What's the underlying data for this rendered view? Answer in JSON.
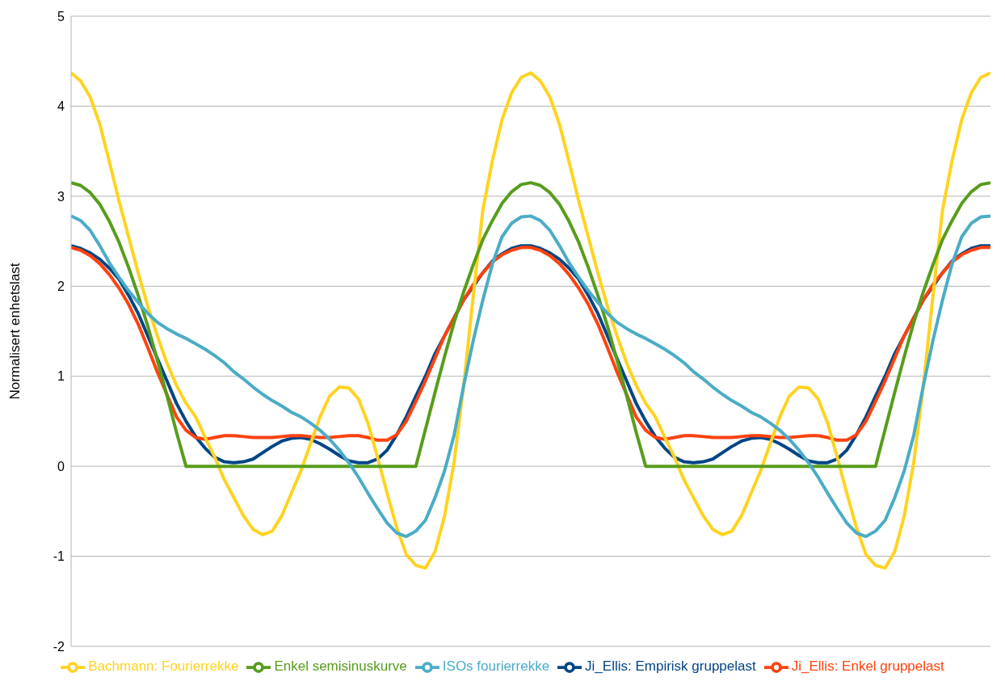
{
  "chart_data": {
    "type": "line",
    "ylabel": "Normalisert enhetslast",
    "ylim": [
      -2,
      5
    ],
    "yticks": [
      -2,
      -1,
      0,
      1,
      2,
      3,
      4,
      5
    ],
    "grid": "y",
    "legend": "bottom",
    "tick_labels": "y",
    "marker": "none",
    "line_style": "solid",
    "categories": [
      null,
      null,
      null,
      null,
      null,
      null,
      null,
      null,
      null,
      null,
      null,
      null,
      null,
      null,
      null,
      null,
      null,
      null,
      null,
      null,
      null,
      null,
      null,
      null,
      null,
      null,
      null,
      null,
      null,
      null,
      null,
      null,
      null,
      null,
      null,
      null,
      null,
      null,
      null,
      null,
      null,
      null,
      null,
      null,
      null,
      null,
      null,
      null,
      null,
      null,
      null,
      null,
      null,
      null,
      null,
      null,
      null,
      null,
      null,
      null,
      null,
      null,
      null,
      null,
      null,
      null,
      null,
      null,
      null,
      null,
      null,
      null,
      null,
      null,
      null,
      null,
      null,
      null,
      null,
      null,
      null,
      null,
      null,
      null,
      null,
      null,
      null,
      null,
      null,
      null,
      null,
      null,
      null,
      null,
      null,
      null,
      null
    ],
    "series": [
      {
        "name": "Ji_Ellis: Empirisk gruppelast",
        "color": "#004586",
        "values": [
          2.45,
          2.42,
          2.37,
          2.3,
          2.2,
          2.08,
          1.9,
          1.7,
          1.45,
          1.2,
          0.95,
          0.7,
          0.5,
          0.33,
          0.2,
          0.1,
          0.05,
          0.04,
          0.05,
          0.08,
          0.15,
          0.22,
          0.28,
          0.31,
          0.32,
          0.3,
          0.25,
          0.19,
          0.12,
          0.06,
          0.04,
          0.04,
          0.08,
          0.18,
          0.35,
          0.55,
          0.78,
          1.0,
          1.25,
          1.45,
          1.65,
          1.85,
          2.0,
          2.15,
          2.28,
          2.36,
          2.42,
          2.45,
          2.45,
          2.42,
          2.37,
          2.3,
          2.2,
          2.08,
          1.9,
          1.7,
          1.45,
          1.2,
          0.95,
          0.7,
          0.5,
          0.33,
          0.2,
          0.1,
          0.05,
          0.04,
          0.05,
          0.08,
          0.15,
          0.22,
          0.28,
          0.31,
          0.32,
          0.3,
          0.25,
          0.19,
          0.12,
          0.06,
          0.04,
          0.04,
          0.08,
          0.18,
          0.35,
          0.55,
          0.78,
          1.0,
          1.25,
          1.45,
          1.65,
          1.85,
          2.0,
          2.15,
          2.28,
          2.36,
          2.42,
          2.45,
          2.45
        ]
      },
      {
        "name": "Ji_Ellis: Enkel gruppelast",
        "color": "#ff420e",
        "values": [
          2.43,
          2.4,
          2.34,
          2.25,
          2.13,
          1.98,
          1.8,
          1.58,
          1.32,
          1.05,
          0.8,
          0.55,
          0.4,
          0.32,
          0.3,
          0.32,
          0.34,
          0.34,
          0.33,
          0.32,
          0.32,
          0.32,
          0.33,
          0.34,
          0.34,
          0.33,
          0.32,
          0.32,
          0.33,
          0.34,
          0.34,
          0.32,
          0.29,
          0.29,
          0.35,
          0.5,
          0.72,
          0.95,
          1.2,
          1.45,
          1.65,
          1.85,
          2.02,
          2.15,
          2.27,
          2.35,
          2.4,
          2.43,
          2.43,
          2.4,
          2.34,
          2.25,
          2.13,
          1.98,
          1.8,
          1.58,
          1.32,
          1.05,
          0.8,
          0.55,
          0.4,
          0.32,
          0.3,
          0.32,
          0.34,
          0.34,
          0.33,
          0.32,
          0.32,
          0.32,
          0.33,
          0.34,
          0.34,
          0.33,
          0.32,
          0.32,
          0.33,
          0.34,
          0.34,
          0.32,
          0.29,
          0.29,
          0.35,
          0.5,
          0.72,
          0.95,
          1.2,
          1.45,
          1.65,
          1.85,
          2.02,
          2.15,
          2.27,
          2.35,
          2.4,
          2.43,
          2.43
        ]
      },
      {
        "name": "Bachmann: Fourierrekke",
        "color": "#ffd320",
        "values": [
          4.37,
          4.28,
          4.1,
          3.8,
          3.38,
          2.95,
          2.55,
          2.15,
          1.78,
          1.45,
          1.15,
          0.9,
          0.7,
          0.55,
          0.32,
          0.1,
          -0.15,
          -0.35,
          -0.55,
          -0.7,
          -0.76,
          -0.72,
          -0.55,
          -0.3,
          -0.05,
          0.25,
          0.55,
          0.78,
          0.88,
          0.87,
          0.75,
          0.48,
          0.1,
          -0.3,
          -0.68,
          -0.98,
          -1.1,
          -1.13,
          -0.95,
          -0.55,
          0.05,
          0.9,
          1.9,
          2.85,
          3.4,
          3.85,
          4.15,
          4.32,
          4.37,
          4.28,
          4.1,
          3.8,
          3.38,
          2.95,
          2.55,
          2.15,
          1.78,
          1.45,
          1.15,
          0.9,
          0.7,
          0.55,
          0.32,
          0.1,
          -0.15,
          -0.35,
          -0.55,
          -0.7,
          -0.76,
          -0.72,
          -0.55,
          -0.3,
          -0.05,
          0.25,
          0.55,
          0.78,
          0.88,
          0.87,
          0.75,
          0.48,
          0.1,
          -0.3,
          -0.68,
          -0.98,
          -1.1,
          -1.13,
          -0.95,
          -0.55,
          0.05,
          0.9,
          1.9,
          2.85,
          3.4,
          3.85,
          4.15,
          4.32,
          4.37
        ]
      },
      {
        "name": "Enkel semisinuskurve",
        "color": "#579d1c",
        "values": [
          3.15,
          3.12,
          3.04,
          2.91,
          2.72,
          2.49,
          2.21,
          1.9,
          1.56,
          1.18,
          0.79,
          0.38,
          0,
          0,
          0,
          0,
          0,
          0,
          0,
          0,
          0,
          0,
          0,
          0,
          0,
          0,
          0,
          0,
          0,
          0,
          0,
          0,
          0,
          0,
          0,
          0,
          0,
          0.41,
          0.82,
          1.22,
          1.6,
          1.94,
          2.24,
          2.52,
          2.73,
          2.92,
          3.05,
          3.13,
          3.15,
          3.12,
          3.04,
          2.91,
          2.72,
          2.49,
          2.21,
          1.9,
          1.56,
          1.18,
          0.79,
          0.38,
          0,
          0,
          0,
          0,
          0,
          0,
          0,
          0,
          0,
          0,
          0,
          0,
          0,
          0,
          0,
          0,
          0,
          0,
          0,
          0,
          0,
          0,
          0,
          0,
          0,
          0.41,
          0.82,
          1.22,
          1.6,
          1.94,
          2.24,
          2.52,
          2.73,
          2.92,
          3.05,
          3.13,
          3.15
        ]
      },
      {
        "name": "ISOs fourierrekke",
        "color": "#4bacc6",
        "values": [
          2.78,
          2.73,
          2.62,
          2.45,
          2.26,
          2.1,
          1.95,
          1.82,
          1.7,
          1.6,
          1.53,
          1.47,
          1.42,
          1.36,
          1.3,
          1.23,
          1.15,
          1.05,
          0.97,
          0.88,
          0.8,
          0.73,
          0.67,
          0.6,
          0.55,
          0.48,
          0.4,
          0.3,
          0.18,
          0.04,
          -0.12,
          -0.3,
          -0.47,
          -0.63,
          -0.74,
          -0.78,
          -0.72,
          -0.6,
          -0.35,
          -0.05,
          0.35,
          0.9,
          1.4,
          1.85,
          2.25,
          2.55,
          2.7,
          2.77,
          2.78,
          2.73,
          2.62,
          2.45,
          2.26,
          2.1,
          1.95,
          1.82,
          1.7,
          1.6,
          1.53,
          1.47,
          1.42,
          1.36,
          1.3,
          1.23,
          1.15,
          1.05,
          0.97,
          0.88,
          0.8,
          0.73,
          0.67,
          0.6,
          0.55,
          0.48,
          0.4,
          0.3,
          0.18,
          0.04,
          -0.12,
          -0.3,
          -0.47,
          -0.63,
          -0.74,
          -0.78,
          -0.72,
          -0.6,
          -0.35,
          -0.05,
          0.35,
          0.9,
          1.4,
          1.85,
          2.25,
          2.55,
          2.7,
          2.77,
          2.78
        ]
      }
    ]
  }
}
